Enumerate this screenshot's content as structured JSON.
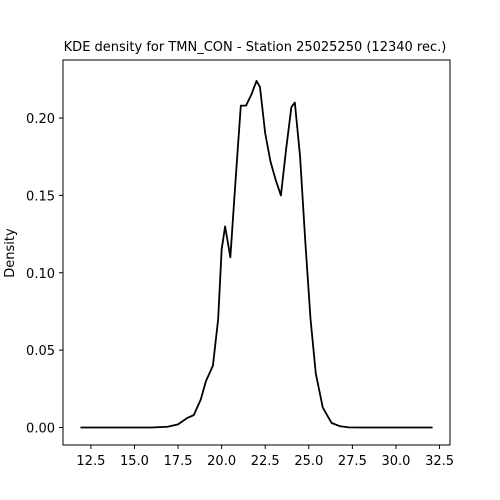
{
  "chart_data": {
    "type": "line",
    "title": "KDE density for TMN_CON - Station 25025250 (12340 rec.)",
    "xlabel": "",
    "ylabel": "Density",
    "xlim": [
      10.9,
      33.1
    ],
    "ylim": [
      -0.0113,
      0.2375
    ],
    "grid": false,
    "x_ticks": [
      12.5,
      15.0,
      17.5,
      20.0,
      22.5,
      25.0,
      27.5,
      30.0,
      32.5
    ],
    "y_ticks": [
      0.0,
      0.05,
      0.1,
      0.15,
      0.2
    ],
    "x_tick_labels": [
      "12.5",
      "15.0",
      "17.5",
      "20.0",
      "22.5",
      "25.0",
      "27.5",
      "30.0",
      "32.5"
    ],
    "y_tick_labels": [
      "0.00",
      "0.05",
      "0.10",
      "0.15",
      "0.20"
    ],
    "series": [
      {
        "name": "TMN_CON",
        "color": "#000000",
        "x": [
          11.9,
          14.0,
          16.0,
          16.9,
          17.5,
          18.0,
          18.4,
          18.8,
          19.1,
          19.5,
          19.8,
          20.0,
          20.2,
          20.5,
          20.8,
          21.1,
          21.4,
          21.7,
          22.0,
          22.2,
          22.5,
          22.8,
          23.1,
          23.4,
          23.7,
          24.0,
          24.2,
          24.5,
          24.8,
          25.1,
          25.4,
          25.8,
          26.3,
          26.8,
          27.3,
          28.0,
          30.0,
          32.1
        ],
        "y": [
          0.0,
          0.0,
          0.0,
          0.0005,
          0.002,
          0.006,
          0.008,
          0.018,
          0.03,
          0.04,
          0.07,
          0.115,
          0.13,
          0.11,
          0.16,
          0.208,
          0.208,
          0.215,
          0.224,
          0.22,
          0.19,
          0.172,
          0.16,
          0.15,
          0.18,
          0.207,
          0.21,
          0.175,
          0.12,
          0.07,
          0.035,
          0.013,
          0.003,
          0.0008,
          0.0001,
          0.0,
          0.0,
          0.0
        ]
      }
    ]
  }
}
